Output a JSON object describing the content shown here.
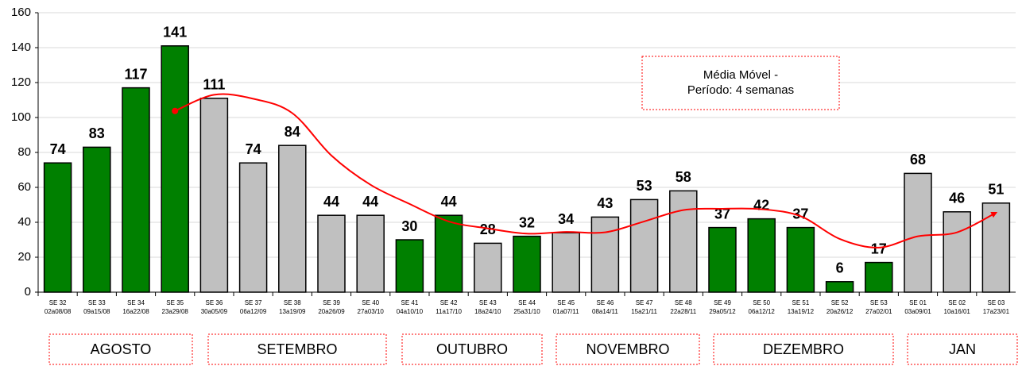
{
  "chart_data": {
    "type": "bar",
    "categories": [
      [
        "SE 32",
        "02a08/08"
      ],
      [
        "SE 33",
        "09a15/08"
      ],
      [
        "SE 34",
        "16a22/08"
      ],
      [
        "SE 35",
        "23a29/08"
      ],
      [
        "SE 36",
        "30a05/09"
      ],
      [
        "SE 37",
        "06a12/09"
      ],
      [
        "SE 38",
        "13a19/09"
      ],
      [
        "SE 39",
        "20a26/09"
      ],
      [
        "SE 40",
        "27a03/10"
      ],
      [
        "SE 41",
        "04a10/10"
      ],
      [
        "SE 42",
        "11a17/10"
      ],
      [
        "SE 43",
        "18a24/10"
      ],
      [
        "SE 44",
        "25a31/10"
      ],
      [
        "SE 45",
        "01a07/11"
      ],
      [
        "SE 46",
        "08a14/11"
      ],
      [
        "SE 47",
        "15a21/11"
      ],
      [
        "SE 48",
        "22a28/11"
      ],
      [
        "SE 49",
        "29a05/12"
      ],
      [
        "SE 50",
        "06a12/12"
      ],
      [
        "SE 51",
        "13a19/12"
      ],
      [
        "SE 52",
        "20a26/12"
      ],
      [
        "SE 53",
        "27a02/01"
      ],
      [
        "SE 01",
        "03a09/01"
      ],
      [
        "SE 02",
        "10a16/01"
      ],
      [
        "SE 03",
        "17a23/01"
      ]
    ],
    "values": [
      74,
      83,
      117,
      141,
      111,
      74,
      84,
      44,
      44,
      30,
      44,
      28,
      32,
      34,
      43,
      53,
      58,
      37,
      42,
      37,
      6,
      17,
      68,
      46,
      51
    ],
    "colors": [
      "#008000",
      "#008000",
      "#008000",
      "#008000",
      "#c0c0c0",
      "#c0c0c0",
      "#c0c0c0",
      "#c0c0c0",
      "#c0c0c0",
      "#008000",
      "#008000",
      "#c0c0c0",
      "#008000",
      "#c0c0c0",
      "#c0c0c0",
      "#c0c0c0",
      "#c0c0c0",
      "#008000",
      "#008000",
      "#008000",
      "#008000",
      "#008000",
      "#c0c0c0",
      "#c0c0c0",
      "#c0c0c0"
    ],
    "moving_average": {
      "color": "#ff0000",
      "values": [
        null,
        null,
        null,
        103.75,
        113,
        110.75,
        102.5,
        78.25,
        61.5,
        50.5,
        40.5,
        36.5,
        33.5,
        34.5,
        34.25,
        40.5,
        47,
        47.75,
        47.5,
        43.5,
        30.5,
        25.5,
        32,
        34.25,
        45.5
      ]
    },
    "annotation": [
      "Média Móvel -",
      "Período: 4 semanas"
    ],
    "months": [
      "AGOSTO",
      "SETEMBRO",
      "OUTUBRO",
      "NOVEMBRO",
      "DEZEMBRO",
      "JAN"
    ],
    "ylim": [
      0,
      160
    ],
    "yticks": [
      0,
      20,
      40,
      60,
      80,
      100,
      120,
      140,
      160
    ],
    "grid": true
  }
}
